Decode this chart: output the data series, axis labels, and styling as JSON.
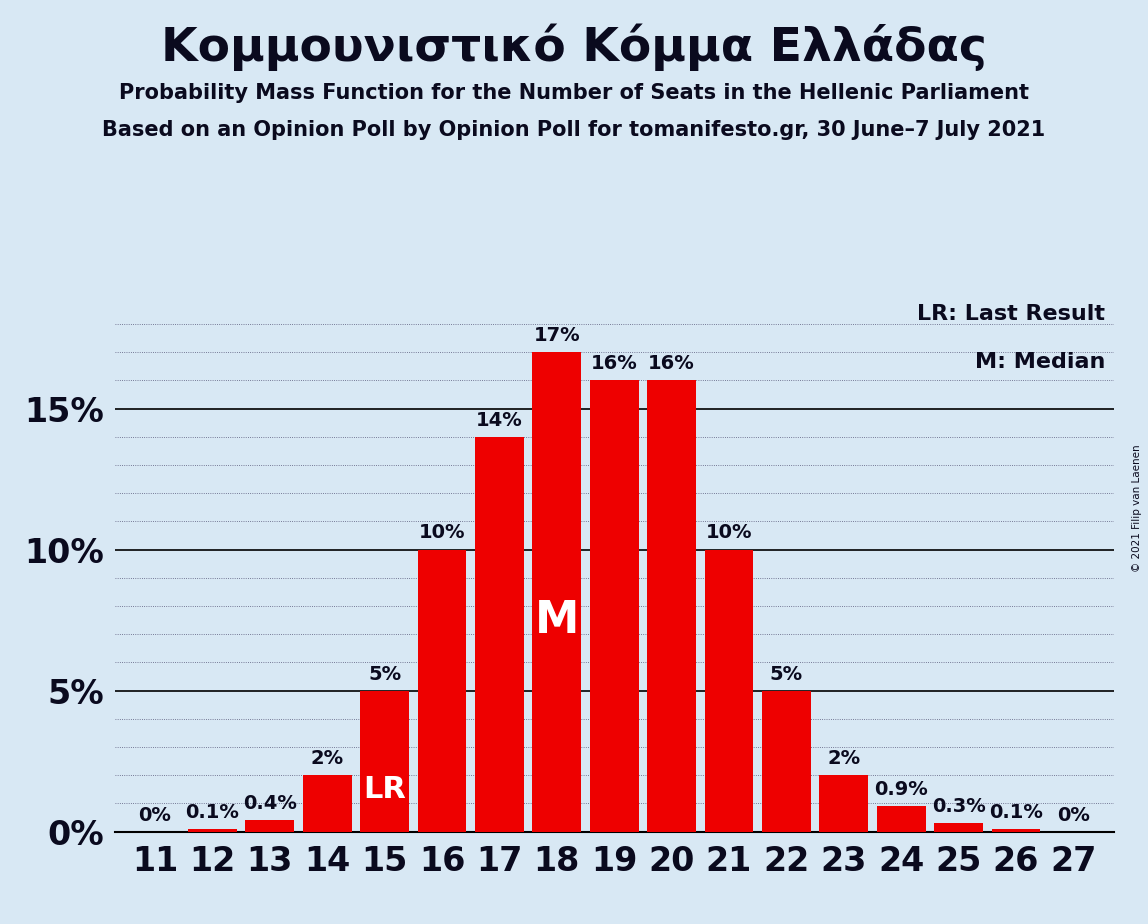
{
  "title": "Κομμουνιστικό Κόμμα Ελλάδας",
  "subtitle1": "Probability Mass Function for the Number of Seats in the Hellenic Parliament",
  "subtitle2": "Based on an Opinion Poll by Opinion Poll for tomanifesto.gr, 30 June–7 July 2021",
  "copyright": "© 2021 Filip van Laenen",
  "legend_lr": "LR: Last Result",
  "legend_m": "M: Median",
  "seats": [
    11,
    12,
    13,
    14,
    15,
    16,
    17,
    18,
    19,
    20,
    21,
    22,
    23,
    24,
    25,
    26,
    27
  ],
  "probabilities": [
    0.0,
    0.1,
    0.4,
    2.0,
    5.0,
    10.0,
    14.0,
    17.0,
    16.0,
    16.0,
    10.0,
    5.0,
    2.0,
    0.9,
    0.3,
    0.1,
    0.0
  ],
  "bar_color": "#ee0000",
  "background_color": "#d8e8f4",
  "text_color": "#0a0a1e",
  "lr_seat": 15,
  "median_seat": 18,
  "yticks": [
    0,
    5,
    10,
    15
  ],
  "ylim": [
    0,
    19
  ],
  "title_fontsize": 34,
  "subtitle_fontsize": 15,
  "tick_fontsize": 24,
  "annotation_fontsize": 14
}
